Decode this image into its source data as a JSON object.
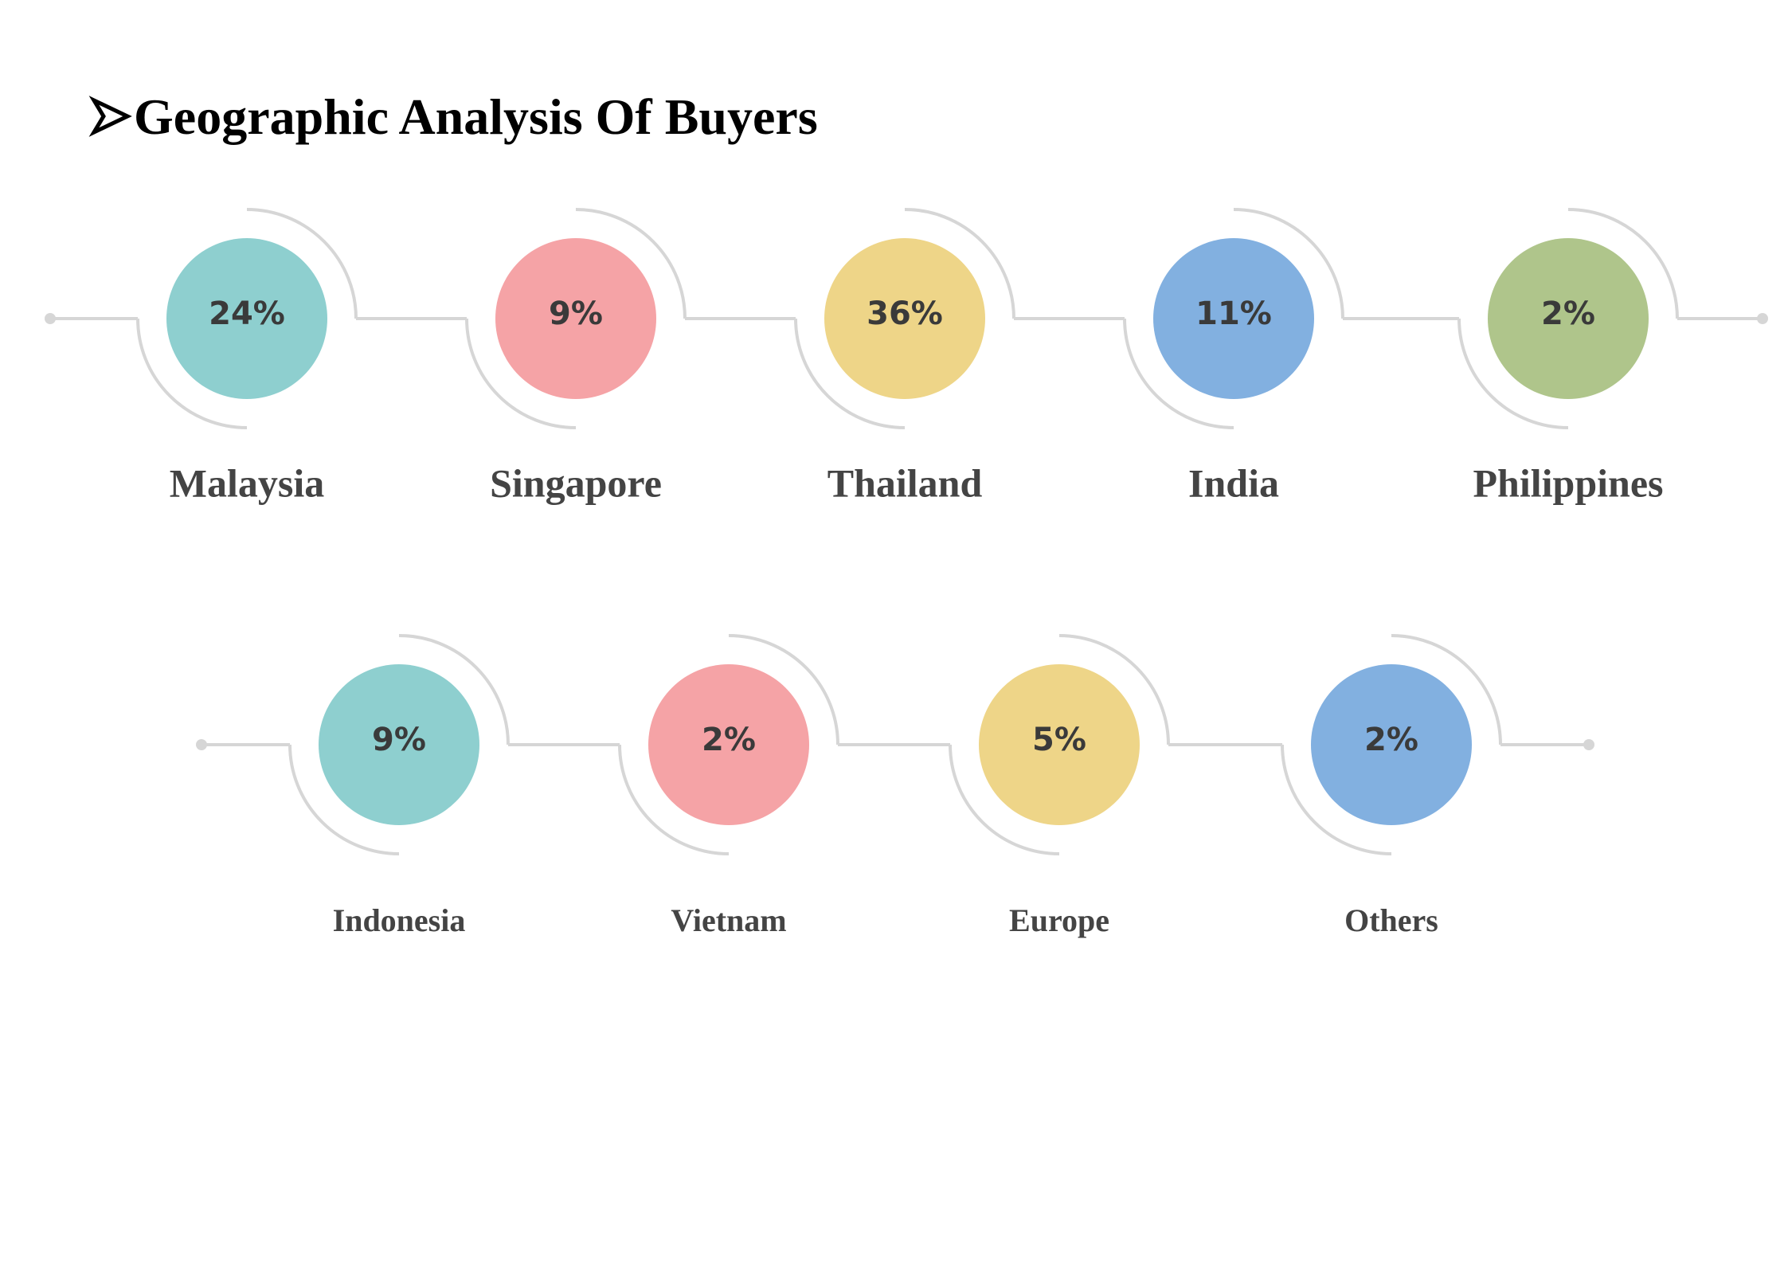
{
  "header": {
    "title": "Geographic Analysis Of Buyers"
  },
  "rows": [
    {
      "items": [
        {
          "value": "24%",
          "label": "Malaysia",
          "color": "#8ecfcf"
        },
        {
          "value": "9%",
          "label": "Singapore",
          "color": "#f5a3a6"
        },
        {
          "value": "36%",
          "label": "Thailand",
          "color": "#eed588"
        },
        {
          "value": "11%",
          "label": "India",
          "color": "#82b0e0"
        },
        {
          "value": "2%",
          "label": "Philippines",
          "color": "#afc58b"
        }
      ]
    },
    {
      "items": [
        {
          "value": "9%",
          "label": "Indonesia",
          "color": "#8ecfcf"
        },
        {
          "value": "2%",
          "label": "Vietnam",
          "color": "#f5a3a6"
        },
        {
          "value": "5%",
          "label": "Europe",
          "color": "#eed588"
        },
        {
          "value": "2%",
          "label": "Others",
          "color": "#82b0e0"
        }
      ]
    }
  ]
}
